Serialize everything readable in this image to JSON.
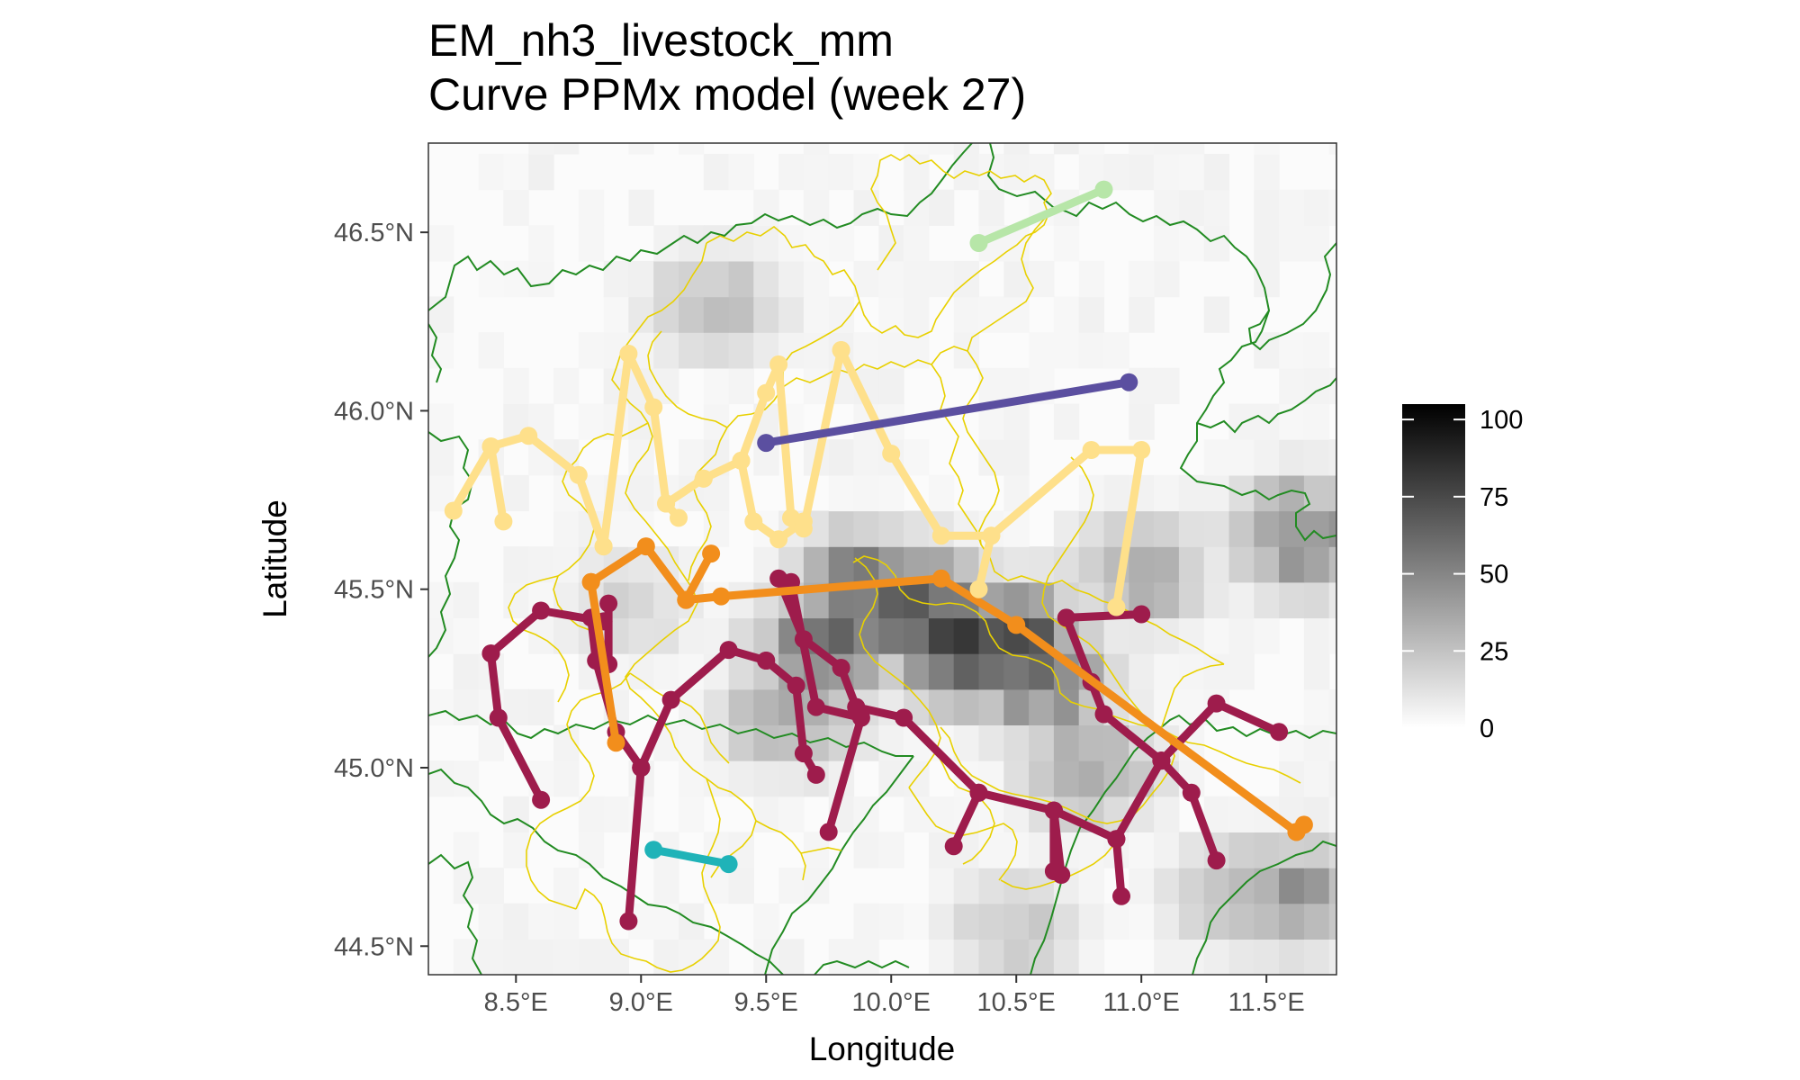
{
  "title_line1": "EM_nh3_livestock_mm",
  "title_line2": "Curve PPMx model (week 27)",
  "chart_data": {
    "type": "map",
    "title": "EM_nh3_livestock_mm",
    "subtitle": "Curve PPMx model (week 27)",
    "xlabel": "Longitude",
    "ylabel": "Latitude",
    "xlim": [
      8.15,
      11.78
    ],
    "ylim": [
      44.42,
      46.75
    ],
    "x_ticks": [
      {
        "value": 8.5,
        "label": "8.5°E"
      },
      {
        "value": 9.0,
        "label": "9.0°E"
      },
      {
        "value": 9.5,
        "label": "9.5°E"
      },
      {
        "value": 10.0,
        "label": "10.0°E"
      },
      {
        "value": 10.5,
        "label": "10.5°E"
      },
      {
        "value": 11.0,
        "label": "11.0°E"
      },
      {
        "value": 11.5,
        "label": "11.5°E"
      }
    ],
    "y_ticks": [
      {
        "value": 44.5,
        "label": "44.5°N"
      },
      {
        "value": 45.0,
        "label": "45.0°N"
      },
      {
        "value": 45.5,
        "label": "45.5°N"
      },
      {
        "value": 46.0,
        "label": "46.0°N"
      },
      {
        "value": 46.5,
        "label": "46.5°N"
      }
    ],
    "grid": false,
    "colorbar": {
      "min": 0,
      "max": 105,
      "ticks": [
        {
          "value": 0,
          "label": "0"
        },
        {
          "value": 25,
          "label": "25"
        },
        {
          "value": 50,
          "label": "50"
        },
        {
          "value": 75,
          "label": "75"
        },
        {
          "value": 100,
          "label": "100"
        }
      ],
      "low_color": "#ffffff",
      "high_color": "#000000",
      "placement": "right"
    },
    "raster_cell_size_deg": [
      0.1,
      0.1
    ],
    "raster_hotspots": [
      {
        "lon": 10.3,
        "lat": 45.35,
        "value": 95
      },
      {
        "lon": 10.45,
        "lat": 45.35,
        "value": 90
      },
      {
        "lon": 10.1,
        "lat": 45.45,
        "value": 80
      },
      {
        "lon": 9.9,
        "lat": 45.5,
        "value": 70
      },
      {
        "lon": 9.75,
        "lat": 45.35,
        "value": 65
      },
      {
        "lon": 10.6,
        "lat": 45.25,
        "value": 60
      },
      {
        "lon": 11.65,
        "lat": 45.65,
        "value": 55
      },
      {
        "lon": 11.6,
        "lat": 44.65,
        "value": 45
      },
      {
        "lon": 11.4,
        "lat": 44.65,
        "value": 35
      },
      {
        "lon": 9.3,
        "lat": 46.3,
        "value": 30
      },
      {
        "lon": 10.8,
        "lat": 45.0,
        "value": 40
      },
      {
        "lon": 9.6,
        "lat": 45.15,
        "value": 40
      },
      {
        "lon": 10.5,
        "lat": 44.55,
        "value": 25
      },
      {
        "lon": 11.0,
        "lat": 45.55,
        "value": 40
      },
      {
        "lon": 8.95,
        "lat": 45.45,
        "value": 20
      }
    ],
    "series": [
      {
        "color": "#9e1c4c",
        "segments": [
          {
            "x": [
              8.4,
              8.6,
              8.85
            ],
            "y": [
              45.32,
              45.44,
              45.41
            ]
          },
          {
            "x": [
              8.4,
              8.43,
              8.6
            ],
            "y": [
              45.32,
              45.14,
              44.91
            ]
          },
          {
            "x": [
              8.8,
              8.82,
              8.9,
              9.0
            ],
            "y": [
              45.42,
              45.3,
              45.1,
              45.0
            ]
          },
          {
            "x": [
              8.87,
              8.87
            ],
            "y": [
              45.29,
              45.46
            ]
          },
          {
            "x": [
              9.0,
              8.95
            ],
            "y": [
              45.0,
              44.57
            ]
          },
          {
            "x": [
              9.0,
              9.12,
              9.35,
              9.5
            ],
            "y": [
              45.0,
              45.19,
              45.33,
              45.3
            ]
          },
          {
            "x": [
              9.5,
              9.62,
              9.65,
              9.7
            ],
            "y": [
              45.3,
              45.23,
              45.04,
              44.98
            ]
          },
          {
            "x": [
              9.55,
              9.65,
              9.8,
              9.86
            ],
            "y": [
              45.53,
              45.36,
              45.28,
              45.17
            ]
          },
          {
            "x": [
              9.6,
              9.7,
              9.88,
              9.75
            ],
            "y": [
              45.52,
              45.17,
              45.14,
              44.82
            ]
          },
          {
            "x": [
              9.86,
              10.05,
              10.35,
              10.25
            ],
            "y": [
              45.17,
              45.14,
              44.93,
              44.78
            ]
          },
          {
            "x": [
              10.35,
              10.65,
              10.68
            ],
            "y": [
              44.93,
              44.88,
              44.7
            ]
          },
          {
            "x": [
              10.65,
              10.65
            ],
            "y": [
              44.88,
              44.71
            ]
          },
          {
            "x": [
              10.65,
              10.9,
              10.92
            ],
            "y": [
              44.88,
              44.8,
              44.64
            ]
          },
          {
            "x": [
              10.9,
              11.08,
              11.2,
              11.3
            ],
            "y": [
              44.8,
              45.02,
              44.93,
              44.74
            ]
          },
          {
            "x": [
              11.08,
              11.3,
              11.55
            ],
            "y": [
              45.02,
              45.18,
              45.1
            ]
          },
          {
            "x": [
              10.7,
              11.0
            ],
            "y": [
              45.42,
              45.43
            ]
          },
          {
            "x": [
              10.7,
              10.8,
              10.85,
              11.08
            ],
            "y": [
              45.42,
              45.24,
              45.15,
              45.02
            ]
          }
        ]
      },
      {
        "color": "#f28e1c",
        "segments": [
          {
            "x": [
              8.8,
              9.02,
              9.18,
              9.28
            ],
            "y": [
              45.52,
              45.62,
              45.47,
              45.6
            ]
          },
          {
            "x": [
              8.8,
              8.9
            ],
            "y": [
              45.52,
              45.07
            ]
          },
          {
            "x": [
              9.18,
              9.32,
              10.2,
              10.5,
              11.62
            ],
            "y": [
              45.47,
              45.48,
              45.53,
              45.4,
              44.82
            ]
          },
          {
            "x": [
              11.62,
              11.65
            ],
            "y": [
              44.82,
              44.84
            ]
          }
        ]
      },
      {
        "color": "#fee08b",
        "segments": [
          {
            "x": [
              8.25,
              8.4,
              8.55,
              8.75,
              8.85
            ],
            "y": [
              45.72,
              45.9,
              45.93,
              45.82,
              45.62
            ]
          },
          {
            "x": [
              8.4,
              8.45
            ],
            "y": [
              45.9,
              45.69
            ]
          },
          {
            "x": [
              8.85,
              8.95,
              9.05,
              9.1,
              9.25
            ],
            "y": [
              45.62,
              46.16,
              46.01,
              45.74,
              45.81
            ]
          },
          {
            "x": [
              9.1,
              9.15
            ],
            "y": [
              45.74,
              45.7
            ]
          },
          {
            "x": [
              9.25,
              9.4,
              9.5,
              9.55,
              9.6,
              9.65,
              9.8
            ],
            "y": [
              45.81,
              45.86,
              46.05,
              46.13,
              45.7,
              45.67,
              46.17
            ]
          },
          {
            "x": [
              9.8,
              10.0,
              10.2,
              10.4,
              10.35
            ],
            "y": [
              46.17,
              45.88,
              45.65,
              45.65,
              45.5
            ]
          },
          {
            "x": [
              10.4,
              10.8,
              11.0,
              10.9
            ],
            "y": [
              45.65,
              45.89,
              45.89,
              45.45
            ]
          },
          {
            "x": [
              9.4,
              9.45,
              9.55,
              9.65
            ],
            "y": [
              45.86,
              45.69,
              45.64,
              45.69
            ]
          }
        ]
      },
      {
        "color": "#5b4fa0",
        "segments": [
          {
            "x": [
              9.5,
              10.95
            ],
            "y": [
              45.91,
              46.08
            ]
          }
        ]
      },
      {
        "color": "#b7e6a8",
        "segments": [
          {
            "x": [
              10.35,
              10.85
            ],
            "y": [
              46.47,
              46.62
            ]
          }
        ]
      },
      {
        "color": "#1fb3b8",
        "segments": [
          {
            "x": [
              9.05,
              9.35
            ],
            "y": [
              44.77,
              44.73
            ]
          }
        ]
      }
    ],
    "boundaries": [
      {
        "color": "#228b22",
        "level": "regions"
      },
      {
        "color": "#e8d000",
        "level": "provinces"
      }
    ]
  }
}
